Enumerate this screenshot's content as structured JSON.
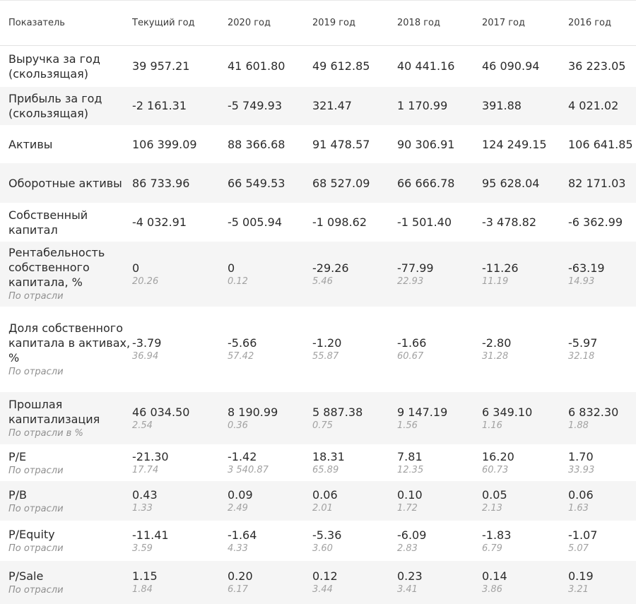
{
  "headers": [
    "Показатель",
    "Текущий год",
    "2020 год",
    "2019 год",
    "2018 год",
    "2017 год",
    "2016 год"
  ],
  "rows": [
    {
      "label": "Выручка за год (скользящая)",
      "note": "",
      "values": [
        "39 957.21",
        "41 601.80",
        "49 612.85",
        "40 441.16",
        "46 090.94",
        "36 223.05"
      ],
      "industry": [
        "",
        "",
        "",
        "",
        "",
        ""
      ]
    },
    {
      "label": "Прибыль за год (скользящая)",
      "note": "",
      "values": [
        "-2 161.31",
        "-5 749.93",
        "321.47",
        "1 170.99",
        "391.88",
        "4 021.02"
      ],
      "industry": [
        "",
        "",
        "",
        "",
        "",
        ""
      ]
    },
    {
      "label": "Активы",
      "note": "",
      "values": [
        "106 399.09",
        "88 366.68",
        "91 478.57",
        "90 306.91",
        "124 249.15",
        "106 641.85"
      ],
      "industry": [
        "",
        "",
        "",
        "",
        "",
        ""
      ]
    },
    {
      "label": "Оборотные активы",
      "note": "",
      "values": [
        "86 733.96",
        "66 549.53",
        "68 527.09",
        "66 666.78",
        "95 628.04",
        "82 171.03"
      ],
      "industry": [
        "",
        "",
        "",
        "",
        "",
        ""
      ]
    },
    {
      "label": "Собственный капитал",
      "note": "",
      "values": [
        "-4 032.91",
        "-5 005.94",
        "-1 098.62",
        "-1 501.40",
        "-3 478.82",
        "-6 362.99"
      ],
      "industry": [
        "",
        "",
        "",
        "",
        "",
        ""
      ]
    },
    {
      "label": "Рентабельность собственного капитала, %",
      "note": "По отрасли",
      "values": [
        "0",
        "0",
        "-29.26",
        "-77.99",
        "-11.26",
        "-63.19"
      ],
      "industry": [
        "20.26",
        "0.12",
        "5.46",
        "22.93",
        "11.19",
        "14.93"
      ]
    },
    {
      "label": "Доля собственного капитала в активах, %",
      "note": "По отрасли",
      "values": [
        "-3.79",
        "-5.66",
        "-1.20",
        "-1.66",
        "-2.80",
        "-5.97"
      ],
      "industry": [
        "36.94",
        "57.42",
        "55.87",
        "60.67",
        "31.28",
        "32.18"
      ]
    },
    {
      "label": "Прошлая капитализация",
      "note": "По отрасли в %",
      "values": [
        "46 034.50",
        "8 190.99",
        "5 887.38",
        "9 147.19",
        "6 349.10",
        "6 832.30"
      ],
      "industry": [
        "2.54",
        "0.36",
        "0.75",
        "1.56",
        "1.16",
        "1.88"
      ]
    },
    {
      "label": "P/E",
      "note": "По отрасли",
      "values": [
        "-21.30",
        "-1.42",
        "18.31",
        "7.81",
        "16.20",
        "1.70"
      ],
      "industry": [
        "17.74",
        "3 540.87",
        "65.89",
        "12.35",
        "60.73",
        "33.93"
      ]
    },
    {
      "label": "P/B",
      "note": "По отрасли",
      "values": [
        "0.43",
        "0.09",
        "0.06",
        "0.10",
        "0.05",
        "0.06"
      ],
      "industry": [
        "1.33",
        "2.49",
        "2.01",
        "1.72",
        "2.13",
        "1.63"
      ]
    },
    {
      "label": "P/Equity",
      "note": "По отрасли",
      "values": [
        "-11.41",
        "-1.64",
        "-5.36",
        "-6.09",
        "-1.83",
        "-1.07"
      ],
      "industry": [
        "3.59",
        "4.33",
        "3.60",
        "2.83",
        "6.79",
        "5.07"
      ]
    },
    {
      "label": "P/Sale",
      "note": "По отрасли",
      "values": [
        "1.15",
        "0.20",
        "0.12",
        "0.23",
        "0.14",
        "0.19"
      ],
      "industry": [
        "1.84",
        "6.17",
        "3.44",
        "3.41",
        "3.86",
        "3.21"
      ]
    }
  ]
}
